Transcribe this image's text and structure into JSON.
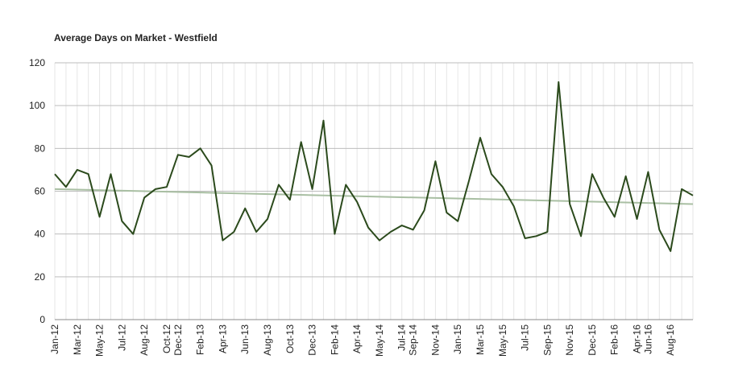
{
  "chart_data": {
    "type": "line",
    "title": "Average Days on Market - Westfield",
    "categories": [
      "Jan-12",
      null,
      "Mar-12",
      null,
      "May-12",
      null,
      "Jul-12",
      null,
      "Aug-12",
      null,
      "Oct-12",
      "Dec-12",
      null,
      "Feb-13",
      null,
      "Apr-13",
      null,
      "Jun-13",
      null,
      "Aug-13",
      null,
      "Oct-13",
      null,
      "Dec-13",
      null,
      "Feb-14",
      null,
      "Apr-14",
      null,
      "May-14",
      null,
      "Jul-14",
      "Sep-14",
      null,
      "Nov-14",
      null,
      "Jan-15",
      null,
      "Mar-15",
      null,
      "May-15",
      null,
      "Jul-15",
      null,
      "Sep-15",
      null,
      "Nov-15",
      null,
      "Dec-15",
      null,
      "Feb-16",
      null,
      "Apr-16",
      "Jun-16",
      null,
      "Aug-16",
      null,
      null
    ],
    "series": [
      {
        "color": "#2b4a1c",
        "values": [
          68,
          62,
          70,
          68,
          48,
          68,
          46,
          40,
          57,
          61,
          62,
          77,
          76,
          80,
          72,
          37,
          41,
          52,
          41,
          47,
          63,
          56,
          83,
          61,
          93,
          40,
          63,
          55,
          43,
          37,
          41,
          44,
          42,
          51,
          74,
          50,
          46,
          65,
          85,
          68,
          62,
          53,
          38,
          39,
          41,
          111,
          54,
          39,
          68,
          57,
          48,
          67,
          47,
          69,
          42,
          32,
          61,
          58
        ]
      }
    ],
    "trendline": {
      "color": "#a9bfa3",
      "start": 61,
      "end": 54
    },
    "ylim": [
      0,
      120
    ],
    "yticks": [
      0,
      20,
      40,
      60,
      80,
      100,
      120
    ],
    "grid": true
  }
}
